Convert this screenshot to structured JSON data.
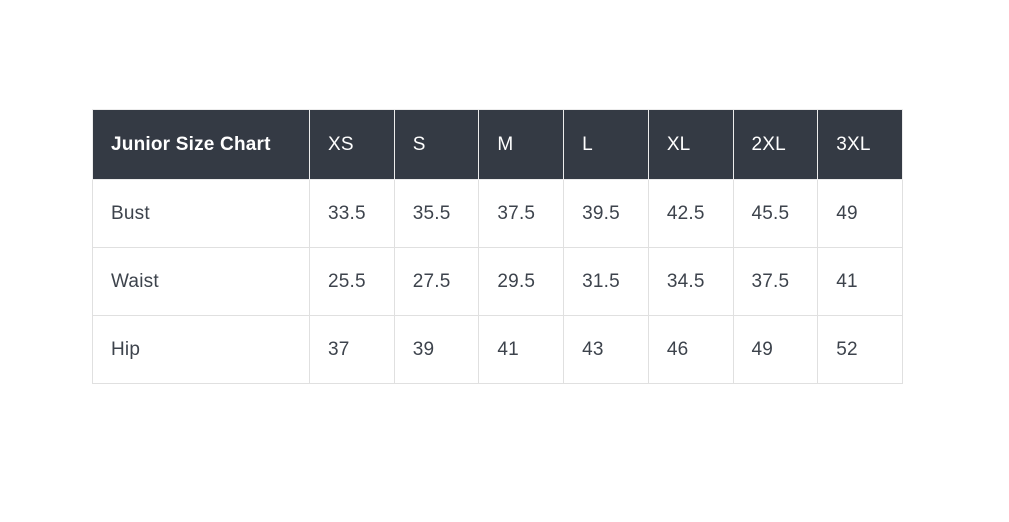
{
  "size_chart": {
    "title": "Junior Size Chart",
    "columns": [
      "XS",
      "S",
      "M",
      "L",
      "XL",
      "2XL",
      "3XL"
    ],
    "rows": [
      {
        "label": "Bust",
        "values": [
          "33.5",
          "35.5",
          "37.5",
          "39.5",
          "42.5",
          "45.5",
          "49"
        ]
      },
      {
        "label": "Waist",
        "values": [
          "25.5",
          "27.5",
          "29.5",
          "31.5",
          "34.5",
          "37.5",
          "41"
        ]
      },
      {
        "label": "Hip",
        "values": [
          "37",
          "39",
          "41",
          "43",
          "46",
          "49",
          "52"
        ]
      }
    ],
    "colors": {
      "header_background": "#343a44",
      "header_text": "#ffffff",
      "body_text": "#3d434c",
      "border": "#e0e0e0",
      "page_background": "#ffffff"
    }
  },
  "chart_data": {
    "type": "table",
    "title": "Junior Size Chart",
    "columns": [
      "XS",
      "S",
      "M",
      "L",
      "XL",
      "2XL",
      "3XL"
    ],
    "row_labels": [
      "Bust",
      "Waist",
      "Hip"
    ],
    "series": [
      {
        "name": "Bust",
        "values": [
          33.5,
          35.5,
          37.5,
          39.5,
          42.5,
          45.5,
          49
        ]
      },
      {
        "name": "Waist",
        "values": [
          25.5,
          27.5,
          29.5,
          31.5,
          34.5,
          37.5,
          41
        ]
      },
      {
        "name": "Hip",
        "values": [
          37,
          39,
          41,
          43,
          46,
          49,
          52
        ]
      }
    ],
    "layout": {
      "header_position": "top-row",
      "grid": true
    }
  }
}
